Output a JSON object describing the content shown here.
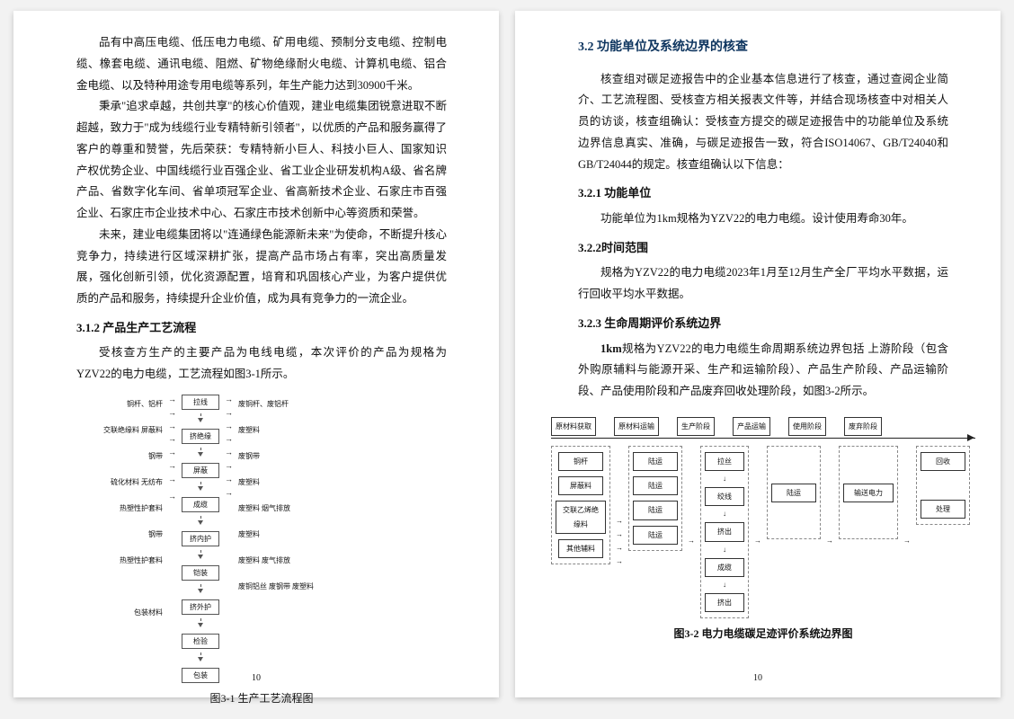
{
  "left": {
    "p1": "品有中高压电缆、低压电力电缆、矿用电缆、预制分支电缆、控制电缆、橡套电缆、通讯电缆、阻燃、矿物绝缘耐火电缆、计算机电缆、铝合金电缆、以及特种用途专用电缆等系列，年生产能力达到30900千米。",
    "p2": "秉承\"追求卓越，共创共享\"的核心价值观，建业电缆集团锐意进取不断超越，致力于\"成为线缆行业专精特新引领者\"，以优质的产品和服务赢得了客户的尊重和赞誉，先后荣获：专精特新小巨人、科技小巨人、国家知识产权优势企业、中国线缆行业百强企业、省工业企业研发机构A级、省名牌产品、省数字化车间、省单项冠军企业、省高新技术企业、石家庄市百强企业、石家庄市企业技术中心、石家庄市技术创新中心等资质和荣誉。",
    "p3": "未来，建业电缆集团将以\"连通绿色能源新未来\"为使命，不断提升核心竞争力，持续进行区域深耕扩张，提高产品市场占有率，突出高质量发展，强化创新引领，优化资源配置，培育和巩固核心产业，为客户提供优质的产品和服务，持续提升企业价值，成为具有竞争力的一流企业。",
    "h312": "3.1.2 产品生产工艺流程",
    "p4": "受核查方生产的主要产品为电线电缆，本次评价的产品为规格为YZV22的电力电缆，工艺流程如图3-1所示。",
    "flow_inputs": [
      "铜杆、铝杆",
      "交联绝缘料 屏蔽料",
      "钢带",
      "硫化材料 无纺布",
      "热塑性护套料",
      "钢带",
      "热塑性护套料",
      "",
      "包装材料"
    ],
    "flow_steps": [
      "拉线",
      "挤绝缘",
      "屏蔽",
      "成缆",
      "挤内护",
      "铠装",
      "挤外护",
      "检验",
      "包装"
    ],
    "flow_outputs": [
      "废铜杆、废铝杆",
      "废塑料",
      "废钢带",
      "废塑料",
      "废塑料 烟气排放",
      "废塑料",
      "废塑料 废气排放",
      "废铜铝丝 废钢带 废塑料",
      ""
    ],
    "fig1": "图3-1 生产工艺流程图",
    "pagenum": "10"
  },
  "right": {
    "h32": "3.2 功能单位及系统边界的核查",
    "p1": "核查组对碳足迹报告中的企业基本信息进行了核查，通过查阅企业简介、工艺流程图、受核查方相关报表文件等，并结合现场核查中对相关人员的访谈，核查组确认：受核查方提交的碳足迹报告中的功能单位及系统边界信息真实、准确，与碳足迹报告一致，符合ISO14067、GB/T24040和GB/T24044的规定。核查组确认以下信息：",
    "h321": "3.2.1 功能单位",
    "p2": "功能单位为1km规格为YZV22的电力电缆。设计使用寿命30年。",
    "h322": "3.2.2时间范围",
    "p3": "规格为YZV22的电力电缆2023年1月至12月生产全厂平均水平数据，运行回收平均水平数据。",
    "h323": "3.2.3 生命周期评价系统边界",
    "p4_bold": "1km",
    "p4": "规格为YZV22的电力电缆生命周期系统边界包括 上游阶段（包含外购原辅料与能源开采、生产和运输阶段）、产品生产阶段、产品运输阶段、产品使用阶段和产品废弃回收处理阶段，如图3-2所示。",
    "sys_heads": [
      "原材料获取",
      "原材料运输",
      "生产阶段",
      "产品运输",
      "使用阶段",
      "废弃阶段"
    ],
    "col1": [
      "铜杆",
      "屏蔽料",
      "交联乙烯绝缘料",
      "其他辅料"
    ],
    "col2": [
      "陆运",
      "陆运",
      "陆运",
      "陆运"
    ],
    "col3": [
      "拉丝",
      "↓",
      "绞线",
      "↓",
      "挤出",
      "↓",
      "成缆",
      "↓",
      "挤出"
    ],
    "col4": [
      "陆运"
    ],
    "col5": [
      "输送电力"
    ],
    "col6": [
      "回收",
      "处理"
    ],
    "fig2": "图3-2 电力电缆碳足迹评价系统边界图",
    "pagenum": "10"
  }
}
